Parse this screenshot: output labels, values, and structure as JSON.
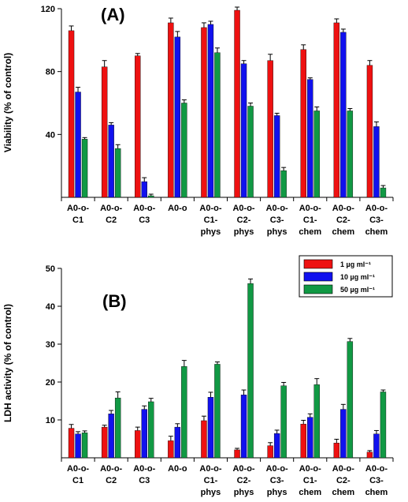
{
  "colors": {
    "s1": "#ee1111",
    "s2": "#1111ee",
    "s3": "#119944"
  },
  "legend": [
    "1 µg ml⁻¹",
    "10 µg ml⁻¹",
    "50 µg ml⁻¹"
  ],
  "chart_data": [
    {
      "type": "bar",
      "panel_label": "(A)",
      "ylabel": "Viability (% of control)",
      "ylim": [
        0,
        120
      ],
      "yticks": [
        40,
        80,
        120
      ],
      "categories": [
        [
          "A0-o-",
          "C1"
        ],
        [
          "A0-o-",
          "C2"
        ],
        [
          "A0-o-",
          "C3"
        ],
        [
          "A0-o"
        ],
        [
          "A0-o-",
          "C1-",
          "phys"
        ],
        [
          "A0-o-",
          "C2-",
          "phys"
        ],
        [
          "A0-o-",
          "C3-",
          "phys"
        ],
        [
          "A0-o-",
          "C1-",
          "chem"
        ],
        [
          "A0-o-",
          "C2-",
          "chem"
        ],
        [
          "A0-o-",
          "C3-",
          "chem"
        ]
      ],
      "series": [
        {
          "values": [
            106,
            83,
            90,
            111,
            108,
            119,
            87,
            94,
            111,
            84
          ],
          "errors": [
            3,
            4,
            1.5,
            3,
            3,
            2,
            4,
            3,
            2.5,
            3
          ]
        },
        {
          "values": [
            67,
            46,
            10,
            102,
            110,
            85,
            52,
            75,
            105,
            45
          ],
          "errors": [
            3,
            1.5,
            2.5,
            3.5,
            2,
            2,
            1.5,
            1,
            2,
            3
          ]
        },
        {
          "values": [
            37,
            31,
            1,
            60,
            92,
            58,
            17,
            55,
            55,
            6
          ],
          "errors": [
            1,
            2.5,
            1,
            2,
            3,
            2,
            2,
            2.5,
            1.5,
            1.5
          ]
        }
      ],
      "legend_placement": "none",
      "grid": false
    },
    {
      "type": "bar",
      "panel_label": "(B)",
      "ylabel": "LDH activity (% of control)",
      "ylim": [
        0,
        50
      ],
      "yticks": [
        10,
        20,
        30,
        40,
        50
      ],
      "categories": [
        [
          "A0-o-",
          "C1"
        ],
        [
          "A0-o-",
          "C2"
        ],
        [
          "A0-o-",
          "C3"
        ],
        [
          "A0-o"
        ],
        [
          "A0-o-",
          "C1-",
          "phys"
        ],
        [
          "A0-o-",
          "C2-",
          "phys"
        ],
        [
          "A0-o-",
          "C3-",
          "phys"
        ],
        [
          "A0-o-",
          "C1-",
          "chem"
        ],
        [
          "A0-o-",
          "C2-",
          "chem"
        ],
        [
          "A0-o-",
          "C3-",
          "chem"
        ]
      ],
      "series": [
        {
          "values": [
            7.8,
            8.1,
            7.2,
            4.5,
            9.8,
            2.1,
            3.2,
            8.9,
            3.9,
            1.5
          ],
          "errors": [
            1,
            0.5,
            0.9,
            1.2,
            1.2,
            0.4,
            0.8,
            1,
            1,
            0.4
          ]
        },
        {
          "values": [
            6.3,
            11.6,
            12.8,
            8.1,
            16,
            16.6,
            6.4,
            10.7,
            12.8,
            6.3
          ],
          "errors": [
            0.6,
            0.9,
            0.9,
            0.9,
            1.3,
            1.3,
            0.9,
            0.9,
            1.3,
            0.9
          ]
        },
        {
          "values": [
            6.6,
            15.8,
            14.8,
            24.1,
            24.7,
            46,
            19,
            19.3,
            30.7,
            17.4
          ],
          "errors": [
            0.5,
            1.6,
            0.9,
            1.6,
            0.6,
            1.2,
            0.9,
            1.6,
            0.8,
            0.5
          ]
        }
      ],
      "legend_placement": "top-right",
      "grid": false
    }
  ]
}
